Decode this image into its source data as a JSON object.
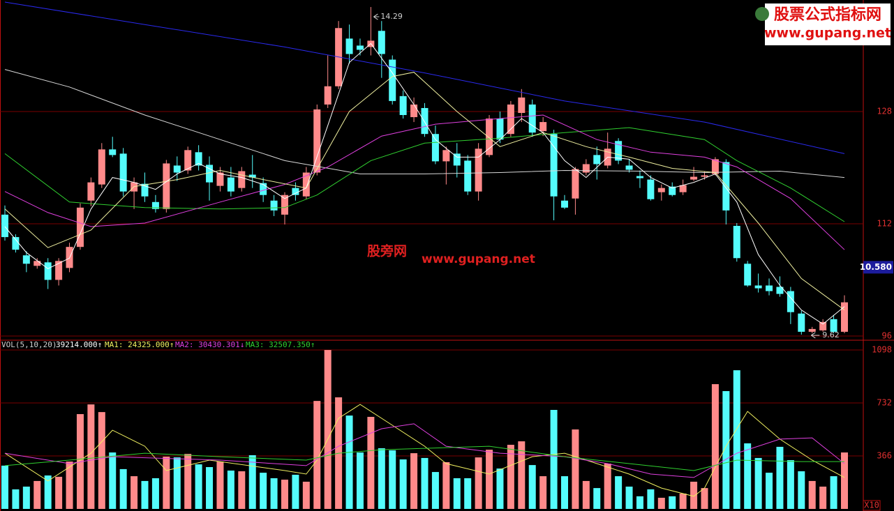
{
  "chart_data": [
    {
      "type": "candlestick",
      "up_color": "#ff8a8a",
      "down_color": "#54fcfc",
      "open": [
        11.33,
        11.01,
        10.75,
        10.6,
        10.65,
        10.4,
        10.57,
        10.87,
        11.53,
        11.76,
        12.26,
        12.2,
        11.66,
        11.77,
        11.51,
        11.41,
        12.03,
        11.96,
        12.22,
        12.04,
        11.74,
        11.86,
        11.71,
        11.9,
        11.78,
        11.53,
        11.33,
        11.71,
        11.59,
        11.93,
        12.9,
        13.16,
        13.84,
        13.74,
        13.72,
        13.95,
        13.54,
        13.02,
        12.72,
        12.85,
        12.48,
        12.09,
        12.2,
        12.1,
        11.66,
        12.18,
        12.7,
        12.48,
        12.78,
        12.9,
        12.52,
        12.48,
        11.53,
        11.56,
        11.93,
        12.18,
        12.03,
        12.38,
        12.03,
        11.88,
        11.83,
        11.65,
        11.73,
        11.65,
        11.83,
        11.87,
        11.91,
        12.08,
        11.17,
        10.63,
        10.32,
        10.32,
        10.3,
        10.24,
        9.92,
        9.66,
        9.68,
        9.84,
        9.66
      ],
      "close": [
        11.01,
        10.83,
        10.63,
        10.67,
        10.4,
        10.67,
        10.87,
        11.43,
        11.79,
        12.26,
        12.18,
        11.66,
        11.79,
        11.59,
        11.41,
        12.06,
        11.93,
        12.25,
        12.03,
        11.79,
        11.93,
        11.66,
        11.95,
        11.86,
        11.61,
        11.39,
        11.61,
        11.61,
        11.93,
        12.83,
        13.16,
        13.99,
        13.62,
        13.68,
        13.81,
        13.62,
        12.95,
        12.75,
        12.9,
        12.48,
        12.09,
        12.25,
        12.03,
        11.66,
        12.27,
        12.7,
        12.4,
        12.9,
        13.0,
        12.5,
        12.65,
        11.59,
        11.43,
        11.98,
        12.05,
        12.05,
        12.27,
        12.1,
        11.97,
        11.85,
        11.55,
        11.71,
        11.61,
        11.75,
        11.87,
        11.89,
        12.12,
        11.39,
        10.71,
        10.32,
        10.28,
        10.24,
        10.2,
        9.94,
        9.66,
        9.7,
        9.8,
        9.66,
        10.08
      ],
      "high": [
        11.46,
        11.05,
        10.81,
        10.71,
        10.71,
        10.71,
        10.93,
        11.49,
        11.86,
        12.35,
        12.44,
        12.28,
        11.86,
        11.93,
        11.61,
        12.11,
        12.16,
        12.3,
        12.32,
        12.16,
        12.01,
        12.01,
        12.01,
        12.18,
        11.86,
        11.61,
        11.65,
        11.79,
        12.01,
        12.9,
        13.6,
        14.09,
        14.04,
        13.84,
        14.29,
        14.09,
        13.6,
        13.1,
        13.0,
        12.92,
        12.6,
        12.3,
        12.35,
        12.18,
        12.35,
        12.75,
        12.8,
        12.95,
        13.12,
        12.97,
        12.72,
        12.54,
        11.61,
        12.01,
        12.12,
        12.3,
        12.5,
        12.42,
        12.12,
        11.96,
        11.89,
        11.76,
        11.79,
        11.83,
        12.01,
        11.95,
        12.15,
        12.12,
        11.21,
        10.67,
        10.49,
        10.42,
        10.45,
        10.3,
        9.96,
        9.73,
        9.84,
        9.9,
        10.18
      ],
      "low": [
        10.96,
        10.79,
        10.51,
        10.56,
        10.27,
        10.32,
        10.51,
        10.83,
        11.45,
        11.71,
        12.15,
        11.59,
        11.41,
        11.51,
        11.36,
        11.36,
        11.81,
        11.91,
        11.96,
        11.53,
        11.66,
        11.59,
        11.66,
        11.71,
        11.51,
        11.31,
        11.19,
        11.53,
        11.55,
        11.89,
        12.85,
        13.12,
        13.48,
        13.6,
        13.6,
        13.28,
        12.9,
        12.7,
        12.65,
        12.44,
        12.05,
        11.76,
        11.86,
        11.61,
        11.53,
        12.15,
        12.35,
        12.44,
        12.65,
        12.44,
        12.45,
        11.25,
        11.41,
        11.33,
        11.89,
        11.83,
        11.99,
        12.05,
        11.93,
        11.71,
        11.53,
        11.53,
        11.59,
        11.61,
        11.81,
        11.83,
        11.89,
        11.19,
        10.66,
        10.3,
        10.22,
        10.18,
        10.16,
        9.77,
        9.62,
        9.64,
        9.66,
        9.64,
        9.64
      ],
      "lines": [
        {
          "color": "#2a2af0",
          "x": [
            0,
            13,
            26,
            39,
            52,
            65,
            78
          ],
          "values": [
            14.36,
            14.04,
            13.72,
            13.35,
            12.95,
            12.65,
            12.2
          ]
        },
        {
          "color": "#d8d8d8",
          "x": [
            0,
            6,
            13,
            20,
            26,
            33,
            39,
            46,
            52,
            59,
            65,
            72,
            78
          ],
          "values": [
            13.4,
            13.15,
            12.75,
            12.4,
            12.1,
            11.91,
            11.91,
            11.93,
            11.96,
            11.95,
            11.93,
            11.95,
            11.86
          ]
        },
        {
          "color": "#30d030",
          "x": [
            0,
            6,
            13,
            20,
            26,
            29,
            34,
            39,
            46,
            52,
            58,
            65,
            68,
            73,
            78
          ],
          "values": [
            12.2,
            11.51,
            11.43,
            11.41,
            11.43,
            11.61,
            12.1,
            12.35,
            12.42,
            12.5,
            12.57,
            12.4,
            12.1,
            11.71,
            11.23
          ]
        },
        {
          "color": "#e040e0",
          "x": [
            0,
            4,
            8,
            13,
            20,
            26,
            30,
            35,
            40,
            46,
            50,
            55,
            60,
            65,
            68,
            73,
            78
          ],
          "values": [
            11.66,
            11.36,
            11.16,
            11.21,
            11.51,
            11.76,
            12.01,
            12.45,
            12.62,
            12.7,
            12.75,
            12.4,
            12.22,
            12.15,
            12.01,
            11.56,
            10.83
          ]
        },
        {
          "color": "#f0f0a0",
          "x": [
            0,
            4,
            8,
            12,
            16,
            20,
            24,
            28,
            32,
            36,
            38,
            42,
            46,
            50,
            54,
            58,
            62,
            66,
            70,
            74,
            78
          ],
          "values": [
            11.41,
            10.86,
            11.11,
            11.73,
            11.83,
            11.96,
            11.83,
            11.71,
            12.8,
            13.3,
            13.36,
            12.8,
            12.3,
            12.5,
            12.3,
            12.15,
            11.99,
            11.93,
            11.21,
            10.42,
            9.97
          ]
        },
        {
          "color": "#ffffff",
          "x": [
            0,
            2,
            4,
            6,
            8,
            10,
            12,
            14,
            16,
            18,
            20,
            22,
            24,
            26,
            28,
            30,
            32,
            34,
            36,
            38,
            40,
            42,
            44,
            46,
            48,
            50,
            52,
            54,
            56,
            58,
            60,
            62,
            64,
            66,
            68,
            70,
            72,
            74,
            76,
            78
          ],
          "values": [
            11.16,
            10.79,
            10.56,
            10.71,
            11.41,
            11.86,
            11.79,
            11.69,
            11.91,
            12.06,
            11.91,
            11.86,
            11.76,
            11.56,
            11.71,
            12.6,
            13.5,
            13.77,
            13.35,
            12.9,
            12.4,
            12.15,
            12.15,
            12.4,
            12.7,
            12.5,
            12.1,
            11.86,
            12.15,
            12.12,
            11.86,
            11.71,
            11.79,
            11.91,
            11.51,
            10.76,
            10.32,
            9.97,
            9.77,
            10.02
          ]
        }
      ],
      "ylim": [
        9.54,
        14.39
      ],
      "yticks": [
        {
          "value": 12.8,
          "label": "128"
        },
        {
          "value": 11.2,
          "label": "112"
        },
        {
          "value": 9.6,
          "label": "96"
        }
      ],
      "current_price": {
        "value": 10.58,
        "label": "10.580"
      }
    },
    {
      "type": "bar",
      "title": "VOL(5,10,20)",
      "current_label": "39214.000↑",
      "values": [
        299,
        135,
        154,
        193,
        231,
        222,
        327,
        655,
        722,
        669,
        390,
        275,
        226,
        193,
        212,
        361,
        356,
        380,
        308,
        289,
        327,
        265,
        260,
        371,
        250,
        212,
        202,
        236,
        188,
        746,
        1098,
        771,
        645,
        390,
        636,
        419,
        405,
        342,
        385,
        352,
        255,
        323,
        212,
        212,
        356,
        409,
        279,
        443,
        467,
        303,
        226,
        684,
        226,
        549,
        193,
        144,
        313,
        226,
        154,
        87,
        135,
        77,
        87,
        106,
        188,
        144,
        862,
        814,
        958,
        453,
        352,
        250,
        429,
        337,
        260,
        193,
        154,
        226,
        390
      ],
      "series": [
        {
          "name": "MA1: 24325.000↑",
          "color": "#f0f060",
          "x": [
            0,
            4,
            8,
            10,
            13,
            15,
            19,
            26,
            28,
            29,
            31,
            33,
            36,
            39,
            41,
            45,
            49,
            52,
            54,
            58,
            61,
            64,
            65,
            67,
            69,
            72,
            75,
            78
          ],
          "values": [
            385,
            193,
            385,
            544,
            433,
            265,
            337,
            265,
            241,
            337,
            626,
            722,
            578,
            433,
            313,
            241,
            361,
            385,
            337,
            241,
            144,
            87,
            144,
            433,
            674,
            482,
            337,
            217
          ]
        },
        {
          "name": "MA2: 30430.301↓",
          "color": "#e040e0",
          "x": [
            0,
            6,
            10,
            20,
            28,
            31,
            35,
            38,
            41,
            46,
            52,
            56,
            60,
            64,
            68,
            72,
            75,
            78
          ],
          "values": [
            385,
            313,
            361,
            337,
            299,
            433,
            554,
            588,
            433,
            385,
            361,
            313,
            241,
            217,
            385,
            482,
            491,
            313
          ]
        },
        {
          "name": "MA3: 32507.350↑",
          "color": "#30d030",
          "x": [
            0,
            6,
            13,
            20,
            28,
            31,
            35,
            45,
            52,
            58,
            64,
            68,
            74,
            78
          ],
          "values": [
            299,
            337,
            385,
            361,
            337,
            385,
            409,
            433,
            361,
            313,
            265,
            337,
            327,
            327
          ]
        }
      ],
      "ylim": [
        0,
        1156
      ],
      "yticks": [
        1098,
        732,
        366
      ],
      "unit": "X10"
    }
  ],
  "watermark": {
    "center_cn": "股旁网",
    "center_url": "www.gupang.net",
    "logo_cn": "股票公式指标网",
    "logo_url": "www.gupang.net"
  }
}
